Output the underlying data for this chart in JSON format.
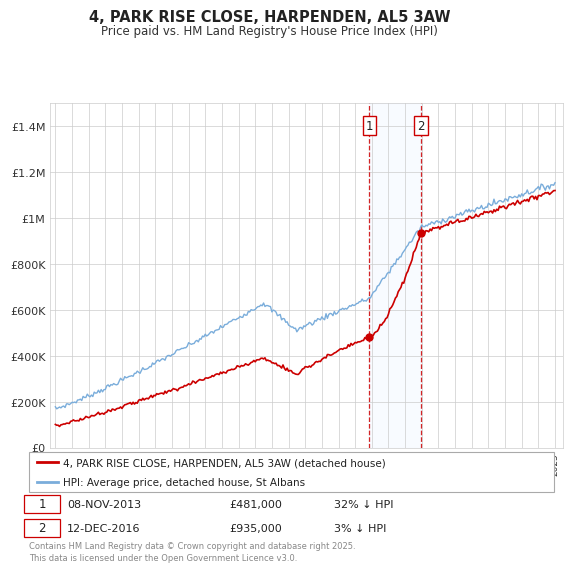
{
  "title": "4, PARK RISE CLOSE, HARPENDEN, AL5 3AW",
  "subtitle": "Price paid vs. HM Land Registry's House Price Index (HPI)",
  "sale1_date": "08-NOV-2013",
  "sale1_price": 481000,
  "sale1_hpi_diff": "32% ↓ HPI",
  "sale2_date": "12-DEC-2016",
  "sale2_price": 935000,
  "sale2_hpi_diff": "3% ↓ HPI",
  "legend_house": "4, PARK RISE CLOSE, HARPENDEN, AL5 3AW (detached house)",
  "legend_hpi": "HPI: Average price, detached house, St Albans",
  "footnote": "Contains HM Land Registry data © Crown copyright and database right 2025.\nThis data is licensed under the Open Government Licence v3.0.",
  "house_color": "#cc0000",
  "hpi_color": "#7aaddb",
  "shade_color": "#ddeeff",
  "ylim_max": 1500000,
  "ylim_min": 0,
  "t1": 2013.854,
  "t2": 2016.958
}
